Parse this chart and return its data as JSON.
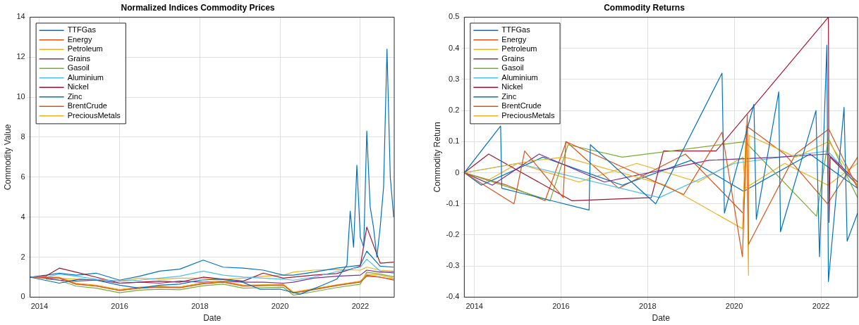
{
  "chart_data": [
    {
      "type": "line",
      "title": "Normalized Indices Commodity Prices",
      "xlabel": "Date",
      "ylabel": "Commodity Value",
      "xlim": [
        "2013-10-08",
        "2022-11-06"
      ],
      "xticks": [
        "2014",
        "2016",
        "2018",
        "2020",
        "2022"
      ],
      "ylim": [
        0,
        14
      ],
      "yticks": [
        0,
        2,
        4,
        6,
        8,
        10,
        12,
        14
      ],
      "grid": true,
      "legend": "top left",
      "marker": "none",
      "x": [
        "2013-10-08",
        "2014-03",
        "2014-07",
        "2014-12",
        "2015-06",
        "2016-01",
        "2016-07",
        "2017-01",
        "2017-07",
        "2018-02",
        "2018-08",
        "2019-02",
        "2019-08",
        "2020-02",
        "2020-05",
        "2020-11",
        "2021-06",
        "2022-01",
        "2022-03",
        "2022-07",
        "2022-11"
      ],
      "series": [
        {
          "name": "TTFGas",
          "color": "#0072bd",
          "x": [
            "2013-10-08",
            "2014-07",
            "2015-01",
            "2015-06",
            "2016-01",
            "2016-07",
            "2017-01",
            "2017-07",
            "2018-01",
            "2018-07",
            "2019-01",
            "2019-07",
            "2020-01",
            "2020-07",
            "2021-01",
            "2021-06",
            "2021-09",
            "2021-10",
            "2021-11",
            "2021-12",
            "2022-01",
            "2022-02",
            "2022-03",
            "2022-04",
            "2022-05",
            "2022-06",
            "2022-07",
            "2022-08",
            "2022-09",
            "2022-10",
            "2022-11"
          ],
          "values": [
            1.0,
            0.7,
            0.9,
            0.85,
            0.6,
            0.45,
            0.6,
            0.65,
            0.85,
            0.9,
            0.8,
            0.4,
            0.4,
            0.15,
            0.55,
            0.9,
            1.6,
            4.3,
            2.5,
            6.6,
            3.0,
            2.5,
            8.3,
            4.5,
            3.5,
            2.0,
            3.5,
            5.5,
            12.4,
            6.0,
            4.0
          ]
        },
        {
          "name": "Energy",
          "color": "#d95319",
          "values": [
            1.0,
            0.98,
            0.95,
            0.65,
            0.55,
            0.33,
            0.45,
            0.5,
            0.47,
            0.67,
            0.75,
            0.55,
            0.58,
            0.6,
            0.2,
            0.37,
            0.58,
            0.75,
            1.05,
            1.0,
            0.85
          ]
        },
        {
          "name": "Petroleum",
          "color": "#edb120",
          "values": [
            1.0,
            1.0,
            1.0,
            0.7,
            0.6,
            0.38,
            0.5,
            0.55,
            0.5,
            0.72,
            0.8,
            0.6,
            0.62,
            0.65,
            0.25,
            0.42,
            0.62,
            0.8,
            1.15,
            1.1,
            0.95
          ]
        },
        {
          "name": "Grains",
          "color": "#7e2f8e",
          "values": [
            1.0,
            0.95,
            0.85,
            0.8,
            0.85,
            0.7,
            0.75,
            0.7,
            0.8,
            0.75,
            0.8,
            0.75,
            0.75,
            0.7,
            0.75,
            0.95,
            1.05,
            1.1,
            1.35,
            1.25,
            1.25
          ]
        },
        {
          "name": "Gasoil",
          "color": "#77ac30",
          "values": [
            null,
            0.91,
            0.85,
            0.55,
            0.45,
            0.22,
            0.35,
            0.4,
            0.37,
            0.57,
            0.65,
            0.45,
            0.48,
            0.5,
            0.1,
            0.27,
            0.48,
            0.65,
            1.25,
            1.15,
            1.02
          ]
        },
        {
          "name": "Aluminium",
          "color": "#4dbeee",
          "values": [
            1.0,
            1.0,
            1.15,
            1.05,
            0.9,
            0.8,
            0.85,
            0.95,
            1.05,
            1.3,
            1.1,
            1.0,
            0.95,
            0.9,
            0.85,
            1.0,
            1.28,
            1.5,
            1.9,
            1.3,
            1.2
          ]
        },
        {
          "name": "Nickel",
          "color": "#a2142f",
          "values": [
            1.0,
            1.05,
            1.45,
            1.25,
            1.0,
            0.7,
            0.75,
            0.8,
            0.75,
            1.0,
            0.9,
            0.8,
            1.2,
            0.95,
            1.0,
            1.1,
            1.18,
            1.55,
            3.5,
            1.7,
            1.75
          ]
        },
        {
          "name": "Zinc",
          "color": "#0072bd",
          "values": [
            1.0,
            1.1,
            1.2,
            1.1,
            1.2,
            0.85,
            1.05,
            1.3,
            1.4,
            1.85,
            1.5,
            1.45,
            1.35,
            1.1,
            1.1,
            1.25,
            1.45,
            1.6,
            2.3,
            1.55,
            1.5
          ]
        },
        {
          "name": "BrentCrude",
          "color": "#d95319",
          "values": [
            1.0,
            0.98,
            0.97,
            0.65,
            0.57,
            0.35,
            0.47,
            0.52,
            0.5,
            0.7,
            0.78,
            0.57,
            0.6,
            0.62,
            0.22,
            0.4,
            0.6,
            0.78,
            1.1,
            1.0,
            0.88
          ]
        },
        {
          "name": "PreciousMetals",
          "color": "#edb120",
          "values": [
            1.0,
            1.0,
            0.95,
            0.9,
            0.85,
            0.8,
            0.95,
            0.9,
            0.95,
            0.95,
            0.88,
            0.95,
            1.05,
            1.1,
            1.25,
            1.35,
            1.38,
            1.35,
            1.5,
            1.35,
            1.3
          ]
        }
      ]
    },
    {
      "type": "line",
      "title": "Commodity Returns",
      "xlabel": "Date",
      "ylabel": "Commodity Return",
      "xlim": [
        "2013-10-08",
        "2022-11-06"
      ],
      "xticks": [
        "2014",
        "2016",
        "2018",
        "2020",
        "2022"
      ],
      "ylim": [
        -0.4,
        0.5
      ],
      "yticks": [
        -0.4,
        -0.3,
        -0.2,
        -0.1,
        0,
        0.1,
        0.2,
        0.3,
        0.4,
        0.5
      ],
      "grid": true,
      "legend": "top left",
      "marker": "none",
      "series": [
        {
          "name": "TTFGas",
          "color": "#0072bd",
          "x": [
            "2013-10-08",
            "2014-08-10",
            "2014-08-20",
            "2016-08-25",
            "2016-09-05",
            "2018-03-10",
            "2019-09-20",
            "2019-10-10",
            "2020-06-15",
            "2020-07-05",
            "2021-01-10",
            "2021-01-25",
            "2021-11-20",
            "2021-12-20",
            "2022-02-20",
            "2022-03-05",
            "2022-07-15",
            "2022-08-10",
            "2022-11-06"
          ],
          "values": [
            0,
            0.15,
            -0.05,
            -0.12,
            0.09,
            -0.1,
            0.32,
            -0.13,
            0.22,
            -0.15,
            0.26,
            -0.19,
            0.2,
            -0.27,
            0.41,
            -0.35,
            0.21,
            -0.22,
            -0.13
          ]
        },
        {
          "name": "Energy",
          "color": "#d95319",
          "x": [
            "2013-10-08",
            "2014-12-01",
            "2015-03-01",
            "2016-01-20",
            "2016-02-10",
            "2018-11-01",
            "2019-09-20",
            "2020-03-10",
            "2020-04-20",
            "2020-05-01",
            "2021-06-01",
            "2022-03-08",
            "2022-11-06"
          ],
          "values": [
            0,
            -0.1,
            0.07,
            -0.08,
            0.1,
            -0.07,
            0.13,
            -0.27,
            0.19,
            -0.23,
            0.06,
            0.14,
            -0.05
          ]
        },
        {
          "name": "Petroleum",
          "color": "#edb120",
          "x": [
            "2013-10-08",
            "2015-06-01",
            "2016-02-01",
            "2018-06-01",
            "2020-03-10",
            "2020-04-10",
            "2020-04-30",
            "2020-05-05",
            "2021-06-01",
            "2022-03-08",
            "2022-11-06"
          ],
          "values": [
            0,
            0.04,
            0.05,
            -0.04,
            -0.18,
            0.15,
            -0.33,
            0.12,
            0.05,
            0.1,
            -0.04
          ]
        },
        {
          "name": "Grains",
          "color": "#7e2f8e",
          "x": [
            "2013-10-08",
            "2014-06-01",
            "2015-07-01",
            "2017-01-01",
            "2019-06-01",
            "2021-01-15",
            "2022-03-01",
            "2022-11-06"
          ],
          "values": [
            0,
            -0.04,
            0.06,
            -0.03,
            0.04,
            0.05,
            0.06,
            -0.03
          ]
        },
        {
          "name": "Gasoil",
          "color": "#77ac30",
          "x": [
            "2013-10-08",
            "2015-10-01",
            "2016-03-01",
            "2017-06-01",
            "2020-04-01",
            "2021-11-25",
            "2022-03-05",
            "2022-11-06"
          ],
          "values": [
            0,
            -0.09,
            0.09,
            0.05,
            0.1,
            -0.14,
            0.11,
            -0.08
          ]
        },
        {
          "name": "Aluminium",
          "color": "#4dbeee",
          "x": [
            "2013-10-08",
            "2015-01-01",
            "2018-04-10",
            "2020-01-01",
            "2022-03-01",
            "2022-11-06"
          ],
          "values": [
            0,
            0.03,
            -0.08,
            0.03,
            0.07,
            -0.04
          ]
        },
        {
          "name": "Nickel",
          "color": "#a2142f",
          "x": [
            "2013-10-08",
            "2014-05-01",
            "2016-04-01",
            "2018-02-01",
            "2018-05-15",
            "2019-08-01",
            "2022-03-05",
            "2022-03-10",
            "2022-03-20",
            "2022-11-06"
          ],
          "values": [
            0,
            0.06,
            -0.09,
            -0.08,
            0.07,
            0.07,
            0.5,
            -0.16,
            0.05,
            -0.04
          ]
        },
        {
          "name": "Zinc",
          "color": "#0072bd",
          "x": [
            "2013-10-08",
            "2014-03-01",
            "2015-08-01",
            "2017-06-01",
            "2019-01-01",
            "2020-03-20",
            "2021-10-01",
            "2022-11-06"
          ],
          "values": [
            0,
            -0.04,
            0.05,
            -0.04,
            0.04,
            -0.06,
            0.06,
            -0.05
          ]
        },
        {
          "name": "BrentCrude",
          "color": "#d95319",
          "x": [
            "2013-10-08",
            "2014-10-01",
            "2015-08-20",
            "2016-02-15",
            "2017-05-01",
            "2018-11-15",
            "2020-03-15",
            "2020-04-15",
            "2021-03-01",
            "2022-02-25",
            "2022-11-06"
          ],
          "values": [
            0,
            -0.04,
            -0.09,
            0.1,
            -0.05,
            0.06,
            -0.13,
            0.15,
            0.06,
            -0.1,
            0.05
          ]
        },
        {
          "name": "PreciousMetals",
          "color": "#edb120",
          "x": [
            "2013-10-08",
            "2014-04-01",
            "2015-01-01",
            "2016-06-01",
            "2017-10-01",
            "2019-03-01",
            "2020-03-15",
            "2020-04-01",
            "2021-03-01",
            "2022-03-01",
            "2022-11-06"
          ],
          "values": [
            0,
            -0.03,
            0.03,
            -0.03,
            0.03,
            -0.03,
            0.05,
            -0.05,
            0.03,
            -0.04,
            0.03
          ]
        }
      ]
    }
  ]
}
